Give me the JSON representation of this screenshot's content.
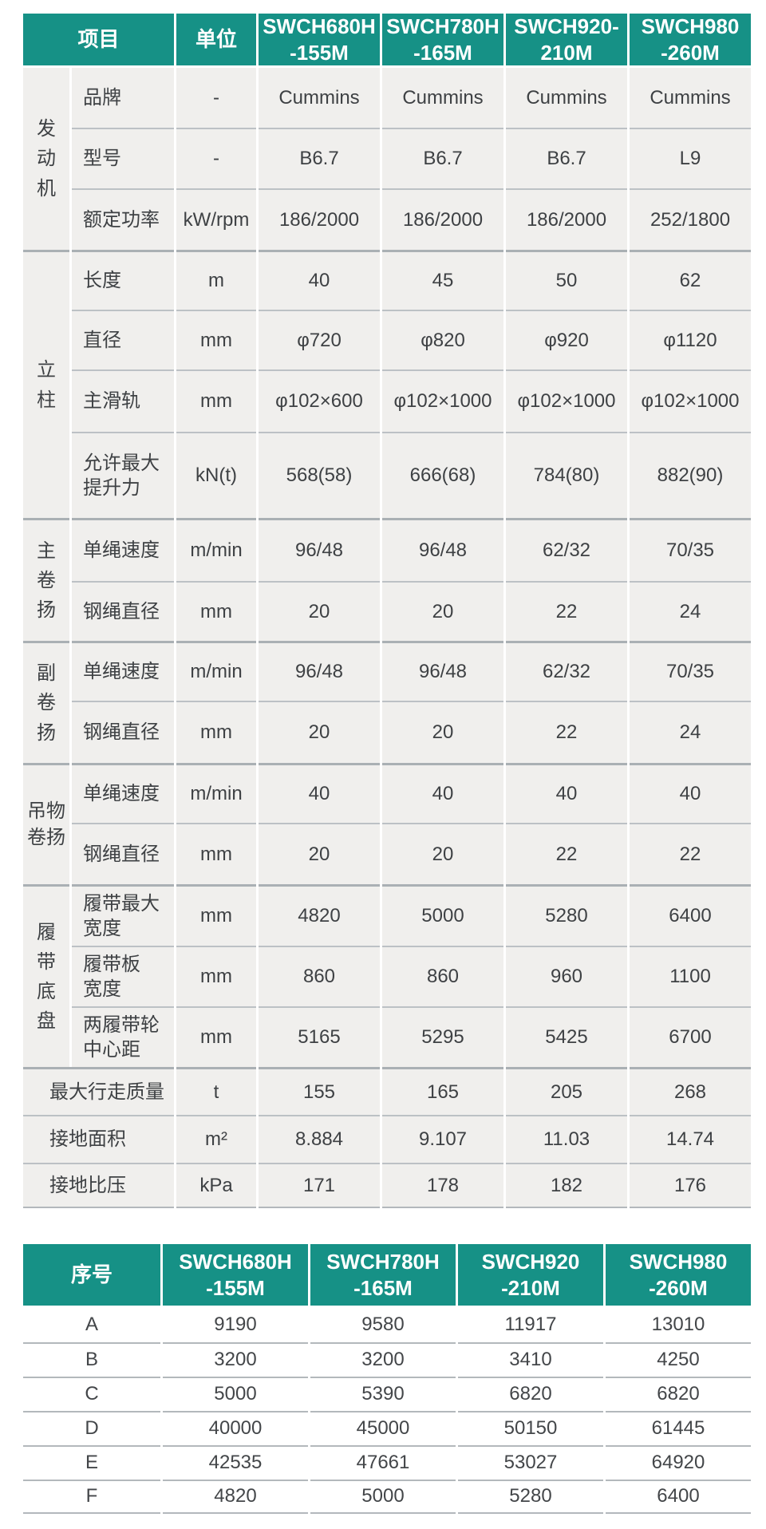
{
  "colors": {
    "header_bg": "#169186",
    "body_cell_bg": "#f0efed",
    "grid_line": "#b7bcc0"
  },
  "spec_table": {
    "header": {
      "item": "项目",
      "unit": "单位",
      "models": [
        "SWCH680H\n-155M",
        "SWCH780H\n-165M",
        "SWCH920-\n210M",
        "SWCH980\n-260M"
      ]
    },
    "groups": [
      {
        "label": "发动机",
        "rows": [
          {
            "item": "品牌",
            "unit": "-",
            "values": [
              "Cummins",
              "Cummins",
              "Cummins",
              "Cummins"
            ]
          },
          {
            "item": "型号",
            "unit": "-",
            "values": [
              "B6.7",
              "B6.7",
              "B6.7",
              "L9"
            ]
          },
          {
            "item": "额定功率",
            "unit": "kW/rpm",
            "values": [
              "186/2000",
              "186/2000",
              "186/2000",
              "252/1800"
            ]
          }
        ]
      },
      {
        "label": "立柱",
        "rows": [
          {
            "item": "长度",
            "unit": "m",
            "values": [
              "40",
              "45",
              "50",
              "62"
            ]
          },
          {
            "item": "直径",
            "unit": "mm",
            "values": [
              "φ720",
              "φ820",
              "φ920",
              "φ1120"
            ]
          },
          {
            "item": "主滑轨",
            "unit": "mm",
            "values": [
              "φ102×600",
              "φ102×1000",
              "φ102×1000",
              "φ102×1000"
            ]
          },
          {
            "item": "允许最大\n提升力",
            "unit": "kN(t)",
            "values": [
              "568(58)",
              "666(68)",
              "784(80)",
              "882(90)"
            ]
          }
        ]
      },
      {
        "label": "主卷扬",
        "rows": [
          {
            "item": "单绳速度",
            "unit": "m/min",
            "values": [
              "96/48",
              "96/48",
              "62/32",
              "70/35"
            ]
          },
          {
            "item": "钢绳直径",
            "unit": "mm",
            "values": [
              "20",
              "20",
              "22",
              "24"
            ]
          }
        ]
      },
      {
        "label": "副卷扬",
        "rows": [
          {
            "item": "单绳速度",
            "unit": "m/min",
            "values": [
              "96/48",
              "96/48",
              "62/32",
              "70/35"
            ]
          },
          {
            "item": "钢绳直径",
            "unit": "mm",
            "values": [
              "20",
              "20",
              "22",
              "24"
            ]
          }
        ]
      },
      {
        "label": "吊物卷扬",
        "rows": [
          {
            "item": "单绳速度",
            "unit": "m/min",
            "values": [
              "40",
              "40",
              "40",
              "40"
            ]
          },
          {
            "item": "钢绳直径",
            "unit": "mm",
            "values": [
              "20",
              "20",
              "22",
              "22"
            ]
          }
        ]
      },
      {
        "label": "履带底盘",
        "rows": [
          {
            "item": "履带最大\n宽度",
            "unit": "mm",
            "values": [
              "4820",
              "5000",
              "5280",
              "6400"
            ]
          },
          {
            "item": "履带板\n宽度",
            "unit": "mm",
            "values": [
              "860",
              "860",
              "960",
              "1100"
            ]
          },
          {
            "item": "两履带轮\n中心距",
            "unit": "mm",
            "values": [
              "5165",
              "5295",
              "5425",
              "6700"
            ]
          }
        ]
      }
    ],
    "footer_rows": [
      {
        "item": "最大行走质量",
        "unit": "t",
        "values": [
          "155",
          "165",
          "205",
          "268"
        ]
      },
      {
        "item": "接地面积",
        "unit": "m²",
        "values": [
          "8.884",
          "9.107",
          "11.03",
          "14.74"
        ]
      },
      {
        "item": "接地比压",
        "unit": "kPa",
        "values": [
          "171",
          "178",
          "182",
          "176"
        ]
      }
    ]
  },
  "dims_table": {
    "header": {
      "index": "序号",
      "models": [
        "SWCH680H\n-155M",
        "SWCH780H\n-165M",
        "SWCH920\n-210M",
        "SWCH980\n-260M"
      ]
    },
    "rows": [
      {
        "label": "A",
        "values": [
          "9190",
          "9580",
          "11917",
          "13010"
        ]
      },
      {
        "label": "B",
        "values": [
          "3200",
          "3200",
          "3410",
          "4250"
        ]
      },
      {
        "label": "C",
        "values": [
          "5000",
          "5390",
          "6820",
          "6820"
        ]
      },
      {
        "label": "D",
        "values": [
          "40000",
          "45000",
          "50150",
          "61445"
        ]
      },
      {
        "label": "E",
        "values": [
          "42535",
          "47661",
          "53027",
          "64920"
        ]
      },
      {
        "label": "F",
        "values": [
          "4820",
          "5000",
          "5280",
          "6400"
        ]
      }
    ]
  }
}
